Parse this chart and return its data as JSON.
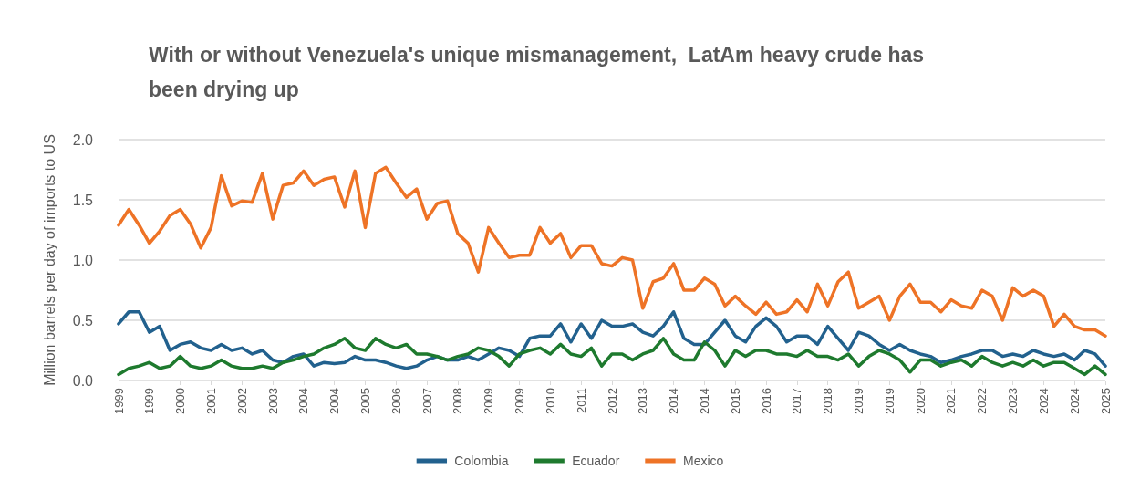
{
  "chart_data": {
    "type": "line",
    "title": "With or without Venezuela's unique mismanagement,  LatAm heavy crude has been drying up",
    "ylabel": "Million barrels per day of imports to US",
    "categories": [
      "1999",
      null,
      null,
      "1999",
      null,
      null,
      "2000",
      null,
      null,
      "2001",
      null,
      null,
      "2002",
      null,
      null,
      "2003",
      null,
      null,
      "2004",
      null,
      null,
      "2004",
      null,
      null,
      "2005",
      null,
      null,
      "2006",
      null,
      null,
      "2007",
      null,
      null,
      "2008",
      null,
      null,
      "2009",
      null,
      null,
      "2009",
      null,
      null,
      "2010",
      null,
      null,
      "2011",
      null,
      null,
      "2012",
      null,
      null,
      "2013",
      null,
      null,
      "2014",
      null,
      null,
      "2014",
      null,
      null,
      "2015",
      null,
      null,
      "2016",
      null,
      null,
      "2017",
      null,
      null,
      "2018",
      null,
      null,
      "2019",
      null,
      null,
      "2019",
      null,
      null,
      "2020",
      null,
      null,
      "2021",
      null,
      null,
      "2022",
      null,
      null,
      "2023",
      null,
      null,
      "2024",
      null,
      null,
      "2024",
      null,
      null,
      "2025"
    ],
    "series": [
      {
        "name": "Colombia",
        "color": "#22618e",
        "values": [
          0.47,
          0.57,
          0.57,
          0.4,
          0.45,
          0.25,
          0.3,
          0.32,
          0.27,
          0.25,
          0.3,
          0.25,
          0.27,
          0.22,
          0.25,
          0.17,
          0.15,
          0.2,
          0.22,
          0.12,
          0.15,
          0.14,
          0.15,
          0.2,
          0.17,
          0.17,
          0.15,
          0.12,
          0.1,
          0.12,
          0.17,
          0.2,
          0.17,
          0.17,
          0.2,
          0.17,
          0.22,
          0.27,
          0.25,
          0.2,
          0.35,
          0.37,
          0.37,
          0.47,
          0.32,
          0.47,
          0.35,
          0.5,
          0.45,
          0.45,
          0.47,
          0.4,
          0.37,
          0.45,
          0.57,
          0.35,
          0.3,
          0.3,
          0.4,
          0.5,
          0.37,
          0.32,
          0.45,
          0.52,
          0.45,
          0.32,
          0.37,
          0.37,
          0.3,
          0.45,
          0.35,
          0.25,
          0.4,
          0.37,
          0.3,
          0.25,
          0.3,
          0.25,
          0.22,
          0.2,
          0.15,
          0.17,
          0.2,
          0.22,
          0.25,
          0.25,
          0.2,
          0.22,
          0.2,
          0.25,
          0.22,
          0.2,
          0.22,
          0.17,
          0.25,
          0.22,
          0.12
        ]
      },
      {
        "name": "Ecuador",
        "color": "#1e7a2e",
        "values": [
          0.05,
          0.1,
          0.12,
          0.15,
          0.1,
          0.12,
          0.2,
          0.12,
          0.1,
          0.12,
          0.17,
          0.12,
          0.1,
          0.1,
          0.12,
          0.1,
          0.15,
          0.17,
          0.2,
          0.22,
          0.27,
          0.3,
          0.35,
          0.27,
          0.25,
          0.35,
          0.3,
          0.27,
          0.3,
          0.22,
          0.22,
          0.2,
          0.17,
          0.2,
          0.22,
          0.27,
          0.25,
          0.2,
          0.12,
          0.22,
          0.25,
          0.27,
          0.22,
          0.3,
          0.22,
          0.2,
          0.27,
          0.12,
          0.22,
          0.22,
          0.17,
          0.22,
          0.25,
          0.35,
          0.22,
          0.17,
          0.17,
          0.32,
          0.25,
          0.12,
          0.25,
          0.2,
          0.25,
          0.25,
          0.22,
          0.22,
          0.2,
          0.25,
          0.2,
          0.2,
          0.17,
          0.22,
          0.12,
          0.2,
          0.25,
          0.22,
          0.17,
          0.07,
          0.17,
          0.17,
          0.12,
          0.15,
          0.17,
          0.12,
          0.2,
          0.15,
          0.12,
          0.15,
          0.12,
          0.17,
          0.12,
          0.15,
          0.15,
          0.1,
          0.05,
          0.12,
          0.05
        ]
      },
      {
        "name": "Mexico",
        "color": "#ee7326",
        "values": [
          1.29,
          1.42,
          1.29,
          1.14,
          1.24,
          1.37,
          1.42,
          1.3,
          1.1,
          1.27,
          1.7,
          1.45,
          1.49,
          1.48,
          1.72,
          1.34,
          1.62,
          1.64,
          1.74,
          1.62,
          1.67,
          1.69,
          1.44,
          1.74,
          1.27,
          1.72,
          1.77,
          1.64,
          1.52,
          1.59,
          1.34,
          1.47,
          1.49,
          1.22,
          1.14,
          0.9,
          1.27,
          1.14,
          1.02,
          1.04,
          1.04,
          1.27,
          1.14,
          1.22,
          1.02,
          1.12,
          1.12,
          0.97,
          0.95,
          1.02,
          1.0,
          0.6,
          0.82,
          0.85,
          0.97,
          0.75,
          0.75,
          0.85,
          0.8,
          0.62,
          0.7,
          0.62,
          0.55,
          0.65,
          0.55,
          0.57,
          0.67,
          0.57,
          0.8,
          0.62,
          0.82,
          0.9,
          0.6,
          0.65,
          0.7,
          0.5,
          0.7,
          0.8,
          0.65,
          0.65,
          0.57,
          0.67,
          0.62,
          0.6,
          0.75,
          0.7,
          0.5,
          0.77,
          0.7,
          0.75,
          0.7,
          0.45,
          0.55,
          0.45,
          0.42,
          0.42,
          0.37
        ]
      }
    ],
    "ylim": [
      0,
      2
    ],
    "yticks": [
      {
        "value": 0,
        "label": "0.0"
      },
      0.5,
      {
        "value": 1,
        "label": "1.0"
      },
      1.5,
      {
        "value": 2,
        "label": "2.0"
      }
    ],
    "grid": "y",
    "legend": "bottom",
    "marker": "none",
    "line_style": "solid"
  }
}
